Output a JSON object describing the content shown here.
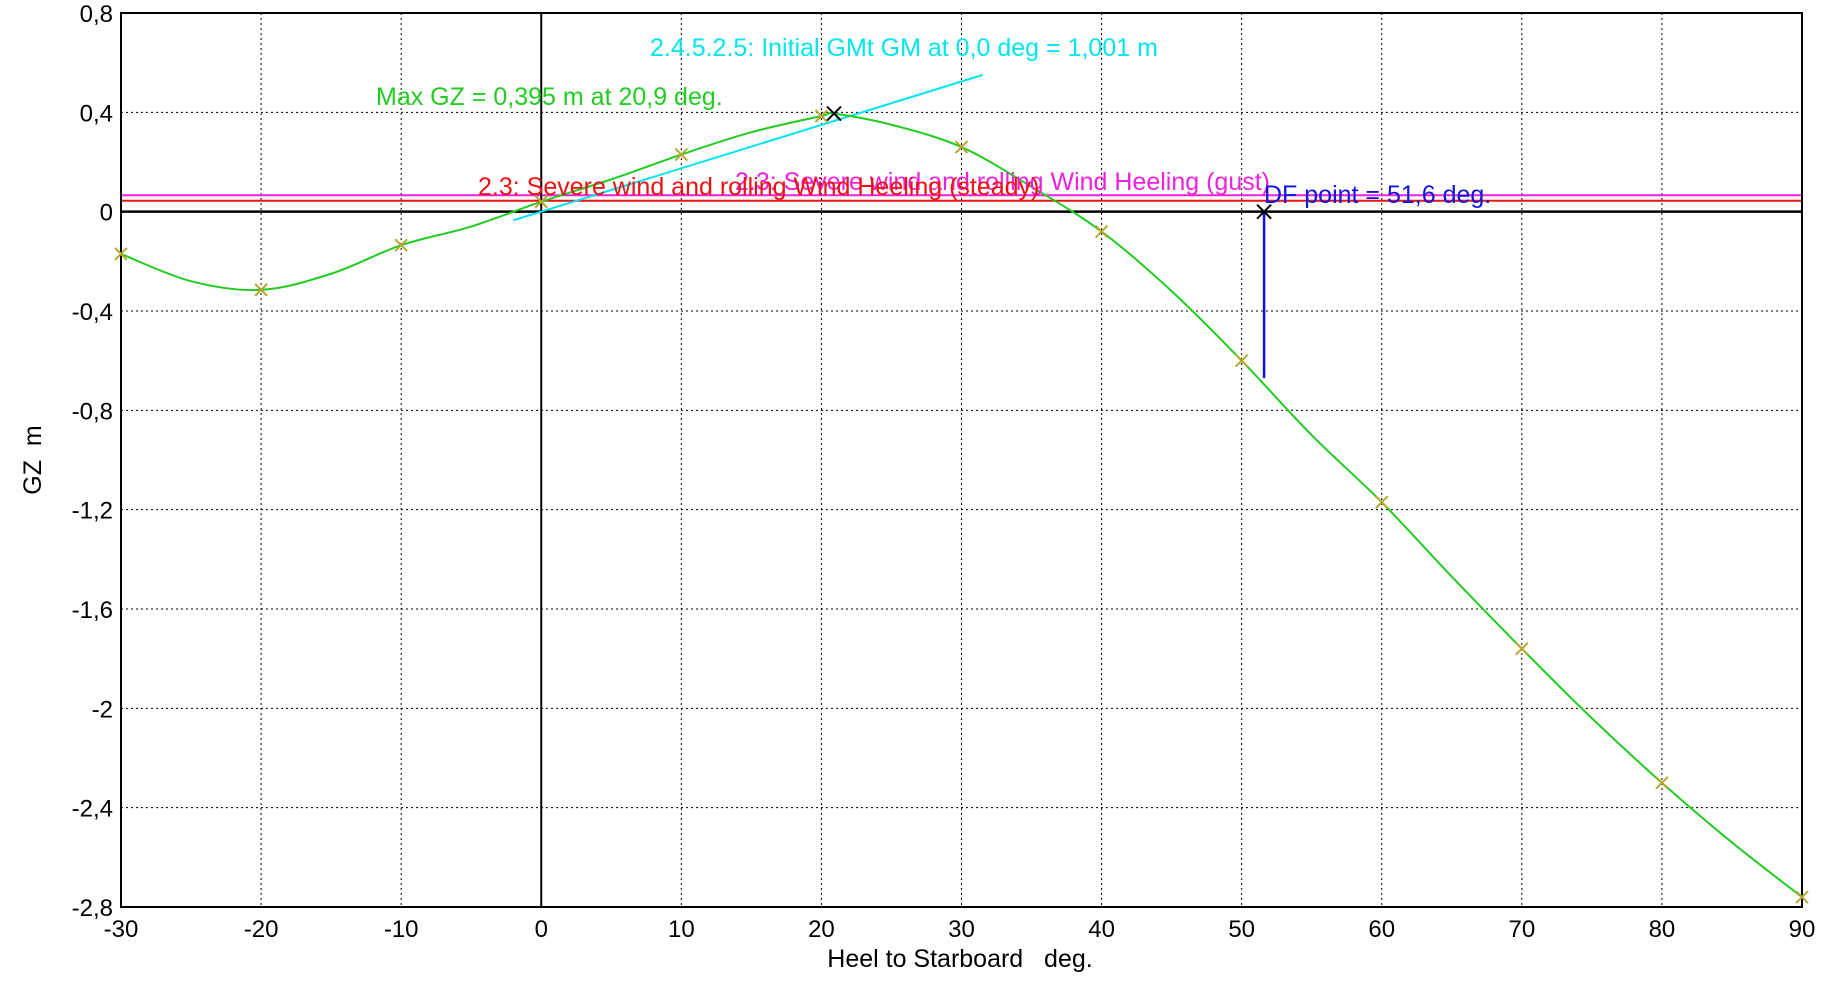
{
  "chart_data": {
    "type": "line",
    "title": "",
    "xlabel": "Heel to Starboard   deg.",
    "ylabel": "GZ  m",
    "xlim": [
      -30,
      90
    ],
    "ylim": [
      -2.8,
      0.8
    ],
    "grid": true,
    "x_ticks": [
      -30,
      -20,
      -10,
      0,
      10,
      20,
      30,
      40,
      50,
      60,
      70,
      80,
      90
    ],
    "x_tick_labels": [
      "-30",
      "-20",
      "-10",
      "0",
      "10",
      "20",
      "30",
      "40",
      "50",
      "60",
      "70",
      "80",
      "90"
    ],
    "y_ticks": [
      0.8,
      0.4,
      0,
      -0.4,
      -0.8,
      -1.2,
      -1.6,
      -2,
      -2.4,
      -2.8
    ],
    "y_tick_labels": [
      "0,8",
      "0,4",
      "0",
      "-0,4",
      "-0,8",
      "-1,2",
      "-1,6",
      "-2",
      "-2,4",
      "-2,8"
    ],
    "colors": {
      "gz_curve": "#22cc22",
      "marker": "#b8a830",
      "gm_line": "#00e5ee",
      "steady": "#ee1111",
      "gust": "#ee22dd",
      "df": "#1111dd",
      "axis": "#000000",
      "grid": "#000000"
    },
    "series": [
      {
        "x": [
          -30,
          -25,
          -20,
          -15,
          -10,
          -5,
          0,
          5,
          10,
          15,
          20,
          20.9,
          25,
          30,
          35,
          40,
          45,
          50,
          55,
          60,
          65,
          70,
          75,
          80,
          85,
          90
        ],
        "values": [
          -0.17,
          -0.28,
          -0.315,
          -0.25,
          -0.135,
          -0.06,
          0.04,
          0.13,
          0.23,
          0.32,
          0.385,
          0.395,
          0.35,
          0.26,
          0.1,
          -0.08,
          -0.32,
          -0.6,
          -0.9,
          -1.17,
          -1.47,
          -1.76,
          -2.04,
          -2.3,
          -2.54,
          -2.76
        ],
        "markers_x": [
          -30,
          -20,
          -10,
          0,
          10,
          20,
          30,
          40,
          50,
          60,
          70,
          80,
          90
        ],
        "markers_y": [
          -0.17,
          -0.315,
          -0.135,
          0.04,
          0.23,
          0.385,
          0.26,
          -0.08,
          -0.6,
          -1.17,
          -1.76,
          -2.3,
          -2.76
        ]
      }
    ],
    "heeling_lines": [
      {
        "label": "2.3: Severe wind and rolling Wind Heeling (steady)",
        "y": 0.044
      },
      {
        "label": "2.3: Severe wind and rolling Wind Heeling (gust)",
        "y": 0.066
      }
    ],
    "max_gz": {
      "label": "Max GZ = 0,395 m at 20,9 deg.",
      "x": 20.9,
      "y": 0.395
    },
    "initial_gm": {
      "label": "2.4.5.2.5: Initial GMt GM at 0,0 deg = 1,001 m",
      "x_start": -2,
      "x_end": 31.5,
      "gm": 1.001
    },
    "df_point": {
      "label": "DF point = 51,6 deg.",
      "x": 51.6,
      "y": 0,
      "y_bottom": -0.67
    }
  }
}
